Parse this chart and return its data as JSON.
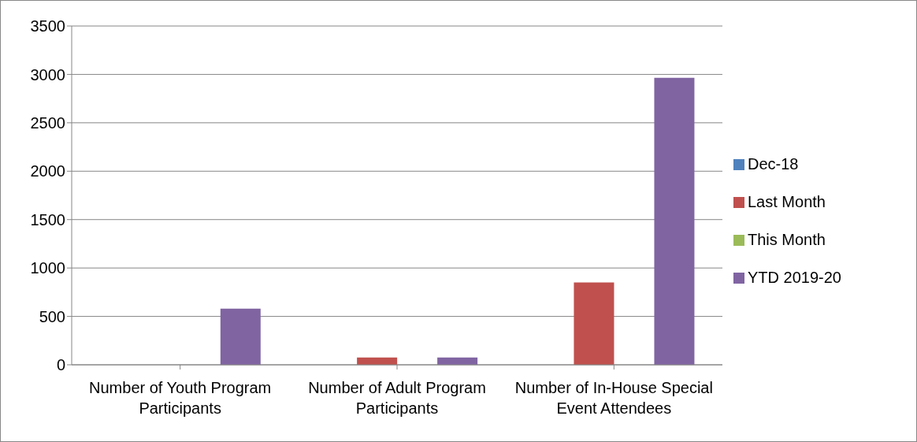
{
  "chart_data": {
    "type": "bar",
    "categories": [
      "Number of Youth Program Participants",
      "Number of Adult Program Participants",
      "Number of In-House Special Event Attendees"
    ],
    "series": [
      {
        "name": "Dec-18",
        "color": "#4f81bd",
        "values": [
          0,
          0,
          0
        ]
      },
      {
        "name": "Last Month",
        "color": "#c0504d",
        "values": [
          0,
          75,
          850
        ]
      },
      {
        "name": "This Month",
        "color": "#9bbb59",
        "values": [
          0,
          0,
          0
        ]
      },
      {
        "name": "YTD 2019-20",
        "color": "#8064a2",
        "values": [
          580,
          75,
          2965
        ]
      }
    ],
    "ylim": [
      0,
      3500
    ],
    "yticks": [
      0,
      500,
      1000,
      1500,
      2000,
      2500,
      3000,
      3500
    ],
    "grid": "y",
    "legend": "right"
  }
}
